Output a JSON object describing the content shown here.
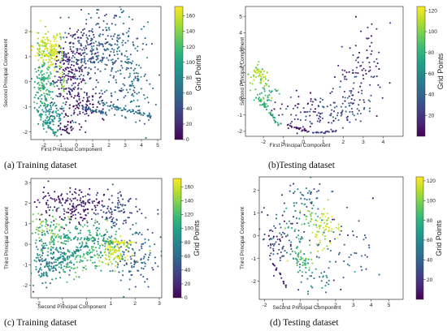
{
  "colors": {
    "viridis": [
      "#440154",
      "#482878",
      "#3e4989",
      "#31688e",
      "#26828e",
      "#1f9e89",
      "#35b779",
      "#6ece58",
      "#b5de2b",
      "#fde725"
    ]
  },
  "chart_data": [
    {
      "id": "a",
      "type": "scatter",
      "caption": "(a) Training dataset",
      "xlabel": "First Principal Component",
      "ylabel": "Second Principal Component",
      "colorbar_label": "Grid Points",
      "xlim": [
        -2.8,
        5.2
      ],
      "ylim": [
        -2.3,
        3.0
      ],
      "xticks": [
        -2,
        -1,
        0,
        1,
        2,
        3,
        4,
        5
      ],
      "yticks": [
        -2,
        -1,
        0,
        1,
        2
      ],
      "clim": [
        0,
        172
      ],
      "cticks": [
        0,
        20,
        40,
        60,
        80,
        100,
        120,
        140,
        160
      ],
      "clusters": [
        {
          "x": -1.9,
          "y": 1.3,
          "sx": 0.35,
          "sy": 0.35,
          "c": 158,
          "cs": 12,
          "n": 110
        },
        {
          "x": -1.3,
          "y": 1.2,
          "sx": 0.22,
          "sy": 0.4,
          "c": 162,
          "cs": 10,
          "n": 70
        },
        {
          "x": -2.0,
          "y": 0.0,
          "sx": 0.35,
          "sy": 0.55,
          "c": 112,
          "cs": 15,
          "n": 130
        },
        {
          "x": -1.5,
          "y": -1.3,
          "sx": 0.45,
          "sy": 0.35,
          "c": 85,
          "cs": 15,
          "n": 110
        },
        {
          "x": -0.4,
          "y": 0.5,
          "sx": 0.45,
          "sy": 0.8,
          "c": 20,
          "cs": 20,
          "n": 190
        },
        {
          "x": 0.8,
          "y": 1.2,
          "sx": 0.8,
          "sy": 0.8,
          "c": 40,
          "cs": 12,
          "n": 180
        },
        {
          "x": 2.3,
          "y": 1.4,
          "sx": 0.9,
          "sy": 0.9,
          "c": 60,
          "cs": 12,
          "n": 160
        },
        {
          "x": 3.5,
          "y": -0.4,
          "sx": 0.7,
          "sy": 0.7,
          "c": 68,
          "cs": 10,
          "n": 100
        },
        {
          "x": 0.5,
          "y": -1.0,
          "sx": 0.7,
          "sy": 0.45,
          "c": 18,
          "cs": 15,
          "n": 90
        },
        {
          "x": -0.6,
          "y": -1.8,
          "sx": 0.3,
          "sy": 0.25,
          "c": 12,
          "cs": 10,
          "n": 30
        }
      ],
      "streaks": [
        {
          "x0": 1.3,
          "y0": -0.8,
          "x1": 4.6,
          "y1": -1.4,
          "c": 65,
          "n": 60
        },
        {
          "x0": 0.0,
          "y0": -0.95,
          "x1": 1.8,
          "y1": -1.25,
          "c": 55,
          "n": 35
        },
        {
          "x0": -2.3,
          "y0": -1.3,
          "x1": -1.2,
          "y1": -2.2,
          "c": 95,
          "n": 35
        },
        {
          "x0": -1.0,
          "y0": 2.0,
          "x1": -0.8,
          "y1": -0.5,
          "c": 140,
          "n": 30
        }
      ]
    },
    {
      "id": "b",
      "type": "scatter",
      "caption": "(b)Testing dataset",
      "xlabel": "First Principal Component",
      "ylabel": "Second Principal Component",
      "colorbar_label": "Grid Points",
      "xlim": [
        -2.9,
        5.0
      ],
      "ylim": [
        -2.3,
        5.6
      ],
      "xticks": [
        -2,
        -1,
        0,
        1,
        2,
        3,
        4
      ],
      "yticks": [
        -2,
        -1,
        0,
        1,
        2,
        3,
        4,
        5
      ],
      "clim": [
        0,
        124
      ],
      "cticks": [
        20,
        40,
        60,
        80,
        100,
        120
      ],
      "clusters": [
        {
          "x": -2.2,
          "y": 1.4,
          "sx": 0.25,
          "sy": 0.3,
          "c": 108,
          "cs": 10,
          "n": 55
        },
        {
          "x": -1.9,
          "y": 0.2,
          "sx": 0.3,
          "sy": 0.4,
          "c": 85,
          "cs": 12,
          "n": 45
        },
        {
          "x": 0.4,
          "y": -0.8,
          "sx": 0.8,
          "sy": 0.6,
          "c": 22,
          "cs": 15,
          "n": 90
        },
        {
          "x": 2.3,
          "y": -0.6,
          "sx": 0.5,
          "sy": 0.6,
          "c": 30,
          "cs": 12,
          "n": 60
        },
        {
          "x": 2.9,
          "y": 1.3,
          "sx": 0.55,
          "sy": 1.0,
          "c": 18,
          "cs": 12,
          "n": 70
        },
        {
          "x": 3.4,
          "y": 3.2,
          "sx": 0.4,
          "sy": 0.9,
          "c": 12,
          "cs": 10,
          "n": 20
        }
      ],
      "streaks": [
        {
          "x0": -2.3,
          "y0": 0.2,
          "x1": -1.2,
          "y1": -1.7,
          "c": 78,
          "n": 40
        },
        {
          "x0": -0.8,
          "y0": -1.6,
          "x1": 0.2,
          "y1": -2.0,
          "c": 8,
          "n": 25
        },
        {
          "x0": 0.4,
          "y0": -2.1,
          "x1": 1.6,
          "y1": -2.0,
          "c": 25,
          "n": 20
        }
      ]
    },
    {
      "id": "c",
      "type": "scatter",
      "caption": "(c) Training dataset",
      "xlabel": "Second Principal Component",
      "ylabel": "Third Principal Component",
      "colorbar_label": "Grid Points",
      "xlim": [
        -2.3,
        3.1
      ],
      "ylim": [
        -2.6,
        3.2
      ],
      "xticks": [
        -2,
        -1,
        0,
        1,
        2,
        3
      ],
      "yticks": [
        -2,
        -1,
        0,
        1,
        2,
        3
      ],
      "clim": [
        0,
        172
      ],
      "cticks": [
        0,
        20,
        40,
        60,
        80,
        100,
        120,
        140,
        160
      ],
      "clusters": [
        {
          "x": -0.6,
          "y": 1.9,
          "sx": 0.7,
          "sy": 0.5,
          "c": 14,
          "cs": 12,
          "n": 180
        },
        {
          "x": 1.2,
          "y": 1.6,
          "sx": 0.6,
          "sy": 0.45,
          "c": 40,
          "cs": 12,
          "n": 90
        },
        {
          "x": 2.0,
          "y": -0.6,
          "sx": 0.45,
          "sy": 0.7,
          "c": 55,
          "cs": 12,
          "n": 110
        },
        {
          "x": 1.2,
          "y": -0.4,
          "sx": 0.4,
          "sy": 0.35,
          "c": 155,
          "cs": 12,
          "n": 100
        },
        {
          "x": -0.3,
          "y": -0.6,
          "sx": 0.7,
          "sy": 0.5,
          "c": 110,
          "cs": 15,
          "n": 150
        },
        {
          "x": -1.5,
          "y": -0.8,
          "sx": 0.45,
          "sy": 0.55,
          "c": 75,
          "cs": 20,
          "n": 150
        },
        {
          "x": -1.5,
          "y": 0.6,
          "sx": 0.45,
          "sy": 0.5,
          "c": 125,
          "cs": 15,
          "n": 100
        },
        {
          "x": 0.4,
          "y": 0.5,
          "sx": 0.6,
          "sy": 0.35,
          "c": 100,
          "cs": 20,
          "n": 80
        }
      ],
      "streaks": [
        {
          "x0": -1.9,
          "y0": -1.6,
          "x1": 0.0,
          "y1": 0.0,
          "c": 82,
          "n": 55
        },
        {
          "x0": 0.9,
          "y0": 0.1,
          "x1": 1.9,
          "y1": 0.1,
          "c": 165,
          "n": 35
        },
        {
          "x0": -1.2,
          "y0": 0.4,
          "x1": 1.1,
          "y1": 0.1,
          "c": 95,
          "n": 40
        }
      ]
    },
    {
      "id": "d",
      "type": "scatter",
      "caption": "(d) Testing dataset",
      "xlabel": "Second Principal Component",
      "ylabel": "Third Principal Component",
      "colorbar_label": "Grid Points",
      "xlim": [
        -2.3,
        5.8
      ],
      "ylim": [
        -2.8,
        2.6
      ],
      "xticks": [
        -2,
        -1,
        0,
        1,
        2,
        3,
        4,
        5
      ],
      "yticks": [
        -2,
        -1,
        0,
        1,
        2
      ],
      "clim": [
        0,
        124
      ],
      "cticks": [
        20,
        40,
        60,
        80,
        100,
        120
      ],
      "clusters": [
        {
          "x": 0.3,
          "y": 1.7,
          "sx": 0.45,
          "sy": 0.4,
          "c": 38,
          "cs": 12,
          "n": 40
        },
        {
          "x": -1.3,
          "y": -0.3,
          "sx": 0.45,
          "sy": 0.65,
          "c": 22,
          "cs": 15,
          "n": 65
        },
        {
          "x": 1.4,
          "y": 0.4,
          "sx": 0.35,
          "sy": 0.4,
          "c": 112,
          "cs": 8,
          "n": 60
        },
        {
          "x": 0.2,
          "y": -1.1,
          "sx": 0.35,
          "sy": 0.3,
          "c": 82,
          "cs": 12,
          "n": 45
        },
        {
          "x": 0.7,
          "y": 0.9,
          "sx": 0.3,
          "sy": 0.4,
          "c": 96,
          "cs": 10,
          "n": 25
        },
        {
          "x": 2.6,
          "y": -0.4,
          "sx": 0.9,
          "sy": 1.0,
          "c": 30,
          "cs": 20,
          "n": 50
        },
        {
          "x": 0.9,
          "y": -1.9,
          "sx": 0.6,
          "sy": 0.4,
          "c": 50,
          "cs": 15,
          "n": 30
        },
        {
          "x": -0.3,
          "y": 0.1,
          "sx": 0.5,
          "sy": 0.7,
          "c": 55,
          "cs": 25,
          "n": 50
        }
      ],
      "streaks": [
        {
          "x0": -1.8,
          "y0": -0.8,
          "x1": -0.8,
          "y1": -2.2,
          "c": 12,
          "n": 20
        }
      ]
    }
  ]
}
